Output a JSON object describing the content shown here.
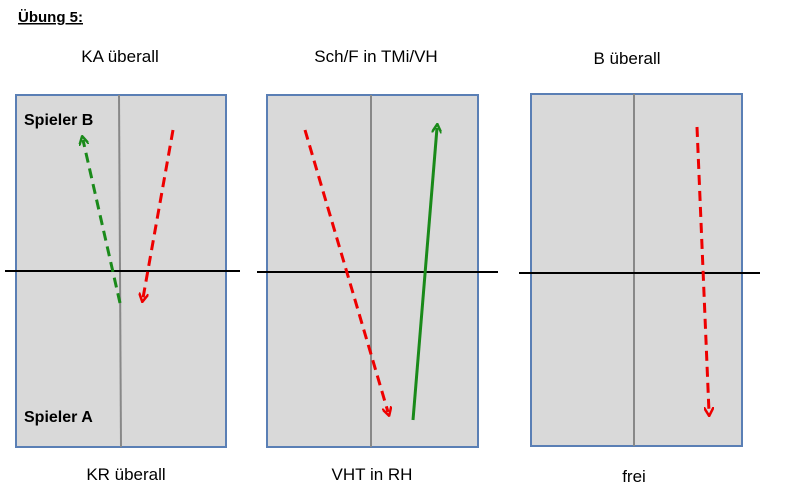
{
  "header": {
    "title": "Übung 5:"
  },
  "panels": [
    {
      "top": "KA überall",
      "bottom": "KR überall",
      "player_top": "Spieler B",
      "player_bottom": "Spieler A"
    },
    {
      "top": "Sch/F in TMi/VH",
      "bottom": "VHT in RH"
    },
    {
      "top": "B überall",
      "bottom": "frei"
    }
  ]
}
